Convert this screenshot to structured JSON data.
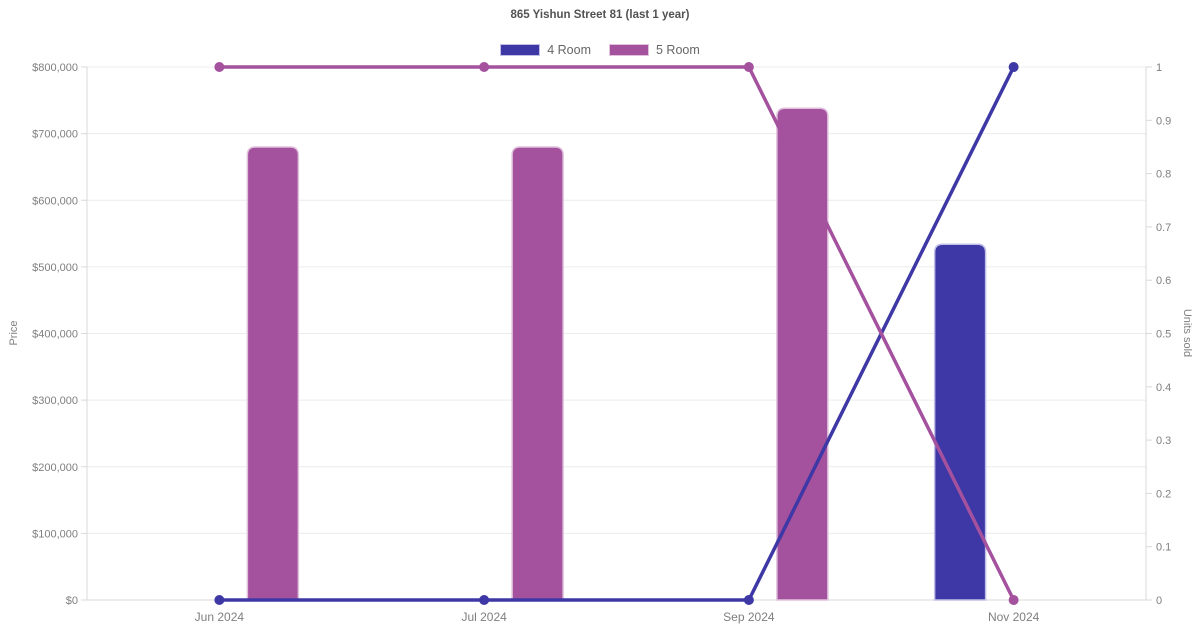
{
  "header": {
    "title": "865 Yishun Street 81 (last 1 year)"
  },
  "legend": {
    "position": "top",
    "items": [
      {
        "label": "4 Room",
        "color": "#3d38a5",
        "border": "#c2c0e6"
      },
      {
        "label": "5 Room",
        "color": "#a4519e",
        "border": "#e0c2dd"
      }
    ]
  },
  "chart_data": {
    "type": "combo-bar-line",
    "title": "865 Yishun Street 81 (last 1 year)",
    "categories": [
      "Jun 2024",
      "Jul 2024",
      "Sep 2024",
      "Nov 2024"
    ],
    "y_left": {
      "label": "Price",
      "min": 0,
      "max": 800000,
      "step": 100000,
      "ticks": [
        "$0",
        "$100,000",
        "$200,000",
        "$300,000",
        "$400,000",
        "$500,000",
        "$600,000",
        "$700,000",
        "$800,000"
      ]
    },
    "y_right": {
      "label": "Units sold",
      "min": 0,
      "max": 1,
      "step": 0.1,
      "ticks": [
        "0",
        "0.1",
        "0.2",
        "0.3",
        "0.4",
        "0.5",
        "0.6",
        "0.7",
        "0.8",
        "0.9",
        "1"
      ]
    },
    "bar_series": [
      {
        "name": "4 Room",
        "axis": "left",
        "color": "#3d38a5",
        "border": "#c2c0e6",
        "values": [
          null,
          null,
          null,
          534000
        ]
      },
      {
        "name": "5 Room",
        "axis": "left",
        "color": "#a4519e",
        "border": "#e0c2dd",
        "values": [
          680000,
          680000,
          738000,
          null
        ]
      }
    ],
    "line_series": [
      {
        "name": "4 Room",
        "axis": "right",
        "color": "#3d38a5",
        "values": [
          0,
          0,
          0,
          1
        ]
      },
      {
        "name": "5 Room",
        "axis": "right",
        "color": "#a4519e",
        "values": [
          1,
          1,
          1,
          0
        ]
      }
    ],
    "grid": "horizontal",
    "legend_position": "top"
  }
}
